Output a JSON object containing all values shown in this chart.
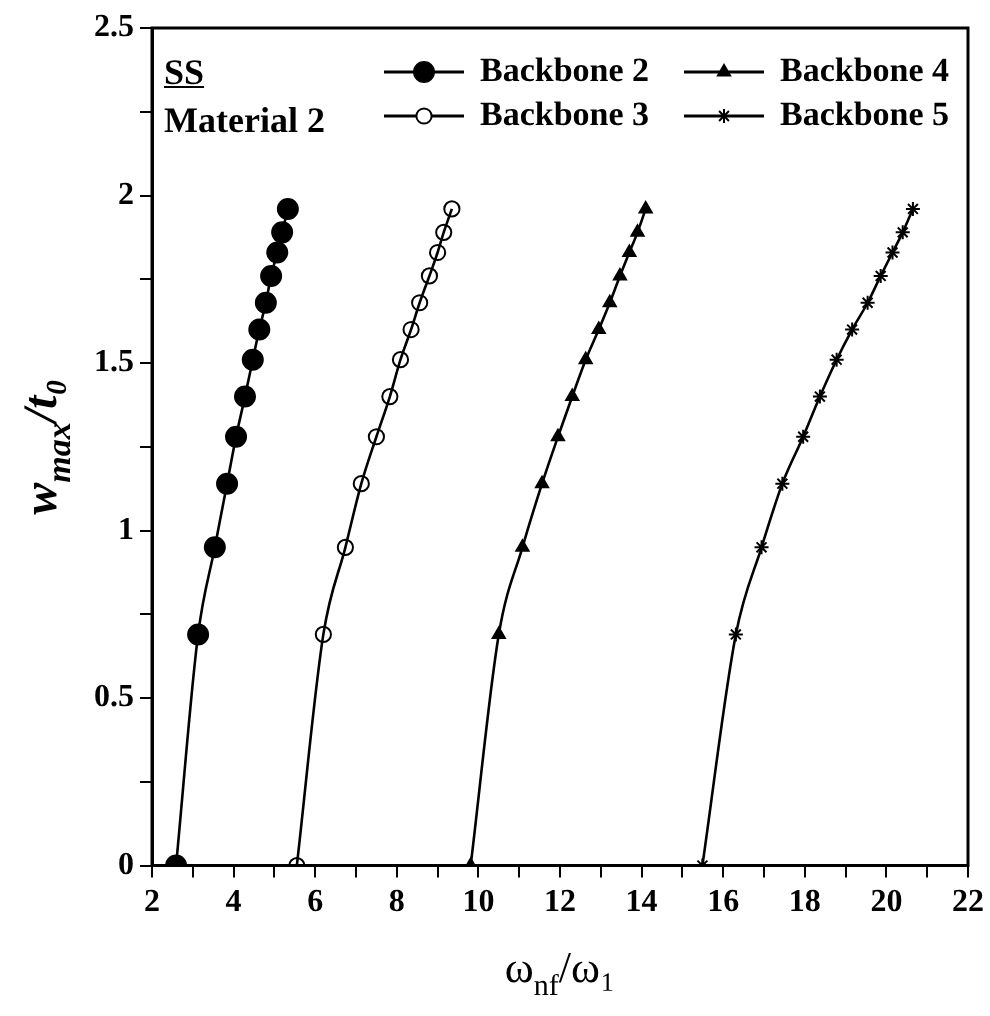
{
  "chart_data": {
    "type": "line",
    "xlabel": "ω$_{nf}$/ω₁",
    "ylabel": "w$_{max}$/t₀",
    "annotations": [
      "SS",
      "Material 2"
    ],
    "xlim": [
      2,
      22
    ],
    "ylim": [
      0,
      2.5
    ],
    "xticks": [
      2,
      {
        "value": 3,
        "label": null
      },
      4,
      {
        "value": 5,
        "label": null
      },
      6,
      {
        "value": 7,
        "label": null
      },
      8,
      {
        "value": 9,
        "label": null
      },
      10,
      {
        "value": 11,
        "label": null
      },
      12,
      {
        "value": 13,
        "label": null
      },
      14,
      {
        "value": 15,
        "label": null
      },
      16,
      {
        "value": 17,
        "label": null
      },
      18,
      {
        "value": 19,
        "label": null
      },
      20,
      {
        "value": 21,
        "label": null
      },
      22
    ],
    "yticks": [
      0,
      {
        "value": 0.25,
        "label": null
      },
      0.5,
      {
        "value": 0.75,
        "label": null
      },
      1,
      {
        "value": 1.25,
        "label": null
      },
      1.5,
      {
        "value": 1.75,
        "label": null
      },
      2,
      {
        "value": 2.25,
        "label": null
      },
      2.5
    ],
    "grid": false,
    "legend": "top right",
    "line_style": "solid",
    "series": [
      {
        "name": "Backbone 2",
        "color": "#000000",
        "marker": "circle",
        "x": [
          2.59,
          3.13,
          3.54,
          3.84,
          4.06,
          4.28,
          4.47,
          4.63,
          4.79,
          4.92,
          5.07,
          5.19,
          5.33
        ],
        "values": [
          0,
          0.69,
          0.95,
          1.14,
          1.28,
          1.4,
          1.51,
          1.6,
          1.68,
          1.76,
          1.83,
          1.89,
          1.96
        ]
      },
      {
        "name": "Backbone 3",
        "color": "#000000",
        "marker": "open circle",
        "x": [
          5.55,
          6.2,
          6.74,
          7.13,
          7.5,
          7.83,
          8.09,
          8.35,
          8.56,
          8.8,
          9.0,
          9.15,
          9.35
        ],
        "values": [
          0,
          0.69,
          0.95,
          1.14,
          1.28,
          1.4,
          1.51,
          1.6,
          1.68,
          1.76,
          1.83,
          1.89,
          1.96
        ]
      },
      {
        "name": "Backbone 4",
        "color": "#000000",
        "marker": "triangle",
        "x": [
          9.81,
          10.5,
          11.08,
          11.56,
          11.95,
          12.3,
          12.63,
          12.95,
          13.22,
          13.47,
          13.7,
          13.9,
          14.1
        ],
        "values": [
          0,
          0.69,
          0.95,
          1.14,
          1.28,
          1.4,
          1.51,
          1.6,
          1.68,
          1.76,
          1.83,
          1.89,
          1.96
        ]
      },
      {
        "name": "Backbone 5",
        "color": "#000000",
        "marker": "cross",
        "x": [
          15.49,
          16.31,
          16.94,
          17.45,
          17.96,
          18.37,
          18.78,
          19.16,
          19.54,
          19.86,
          20.15,
          20.4,
          20.65
        ],
        "values": [
          0,
          0.69,
          0.95,
          1.14,
          1.28,
          1.4,
          1.51,
          1.6,
          1.68,
          1.76,
          1.83,
          1.89,
          1.96
        ]
      }
    ]
  }
}
